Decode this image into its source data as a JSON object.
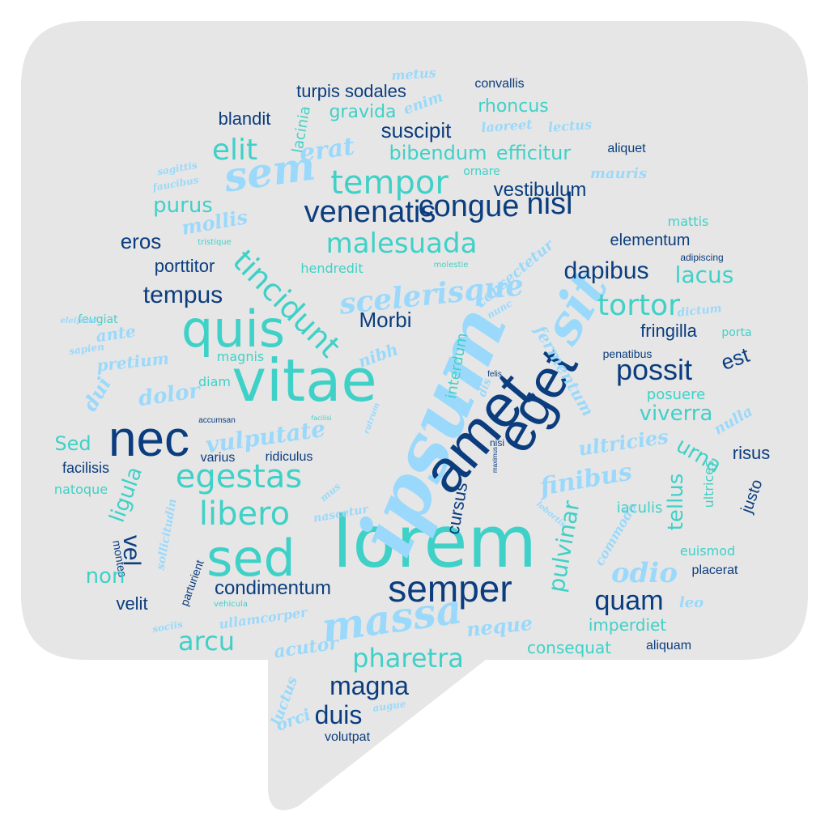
{
  "colors": {
    "bubble": "#e6e6e6",
    "navy": "#0b3d7e",
    "teal": "#3fd1c7",
    "sky": "#9ad9fb"
  },
  "words": [
    {
      "text": "lorem",
      "color": "teal",
      "font": "thin"
    },
    {
      "text": "ipsum",
      "color": "sky",
      "font": "script"
    },
    {
      "text": "amet",
      "color": "navy",
      "font": "sans"
    },
    {
      "text": "eget",
      "color": "navy",
      "font": "sans"
    },
    {
      "text": "vitae",
      "color": "teal",
      "font": "thin"
    },
    {
      "text": "quis",
      "color": "teal",
      "font": "thin"
    },
    {
      "text": "nec",
      "color": "navy",
      "font": "sans"
    },
    {
      "text": "sed",
      "color": "teal",
      "font": "thin"
    },
    {
      "text": "semper",
      "color": "navy",
      "font": "sans"
    },
    {
      "text": "massa",
      "color": "sky",
      "font": "script"
    },
    {
      "text": "sit",
      "color": "sky",
      "font": "script"
    },
    {
      "text": "sem",
      "color": "sky",
      "font": "script"
    },
    {
      "text": "tempor",
      "color": "teal",
      "font": "thin"
    },
    {
      "text": "venenatis",
      "color": "navy",
      "font": "sans"
    },
    {
      "text": "congue",
      "color": "navy",
      "font": "sans"
    },
    {
      "text": "nisl",
      "color": "navy",
      "font": "sans"
    },
    {
      "text": "malesuada",
      "color": "teal",
      "font": "thin"
    },
    {
      "text": "tincidunt",
      "color": "teal",
      "font": "thin"
    },
    {
      "text": "scelerisque",
      "color": "sky",
      "font": "script"
    },
    {
      "text": "egestas",
      "color": "teal",
      "font": "thin"
    },
    {
      "text": "libero",
      "color": "teal",
      "font": "thin"
    },
    {
      "text": "vulputate",
      "color": "sky",
      "font": "script"
    },
    {
      "text": "elit",
      "color": "teal",
      "font": "thin"
    },
    {
      "text": "erat",
      "color": "sky",
      "font": "script"
    },
    {
      "text": "possit",
      "color": "navy",
      "font": "sans"
    },
    {
      "text": "tortor",
      "color": "teal",
      "font": "thin"
    },
    {
      "text": "dapibus",
      "color": "navy",
      "font": "sans"
    },
    {
      "text": "quam",
      "color": "navy",
      "font": "sans"
    },
    {
      "text": "magna",
      "color": "navy",
      "font": "sans"
    },
    {
      "text": "duis",
      "color": "navy",
      "font": "sans"
    },
    {
      "text": "pharetra",
      "color": "teal",
      "font": "thin"
    },
    {
      "text": "arcu",
      "color": "teal",
      "font": "thin"
    },
    {
      "text": "condimentum",
      "color": "navy",
      "font": "sans"
    },
    {
      "text": "tempus",
      "color": "navy",
      "font": "sans"
    },
    {
      "text": "eros",
      "color": "navy",
      "font": "sans"
    },
    {
      "text": "porttitor",
      "color": "navy",
      "font": "sans"
    },
    {
      "text": "Morbi",
      "color": "navy",
      "font": "sans"
    },
    {
      "text": "est",
      "color": "navy",
      "font": "sans"
    },
    {
      "text": "fringilla",
      "color": "navy",
      "font": "sans"
    },
    {
      "text": "viverra",
      "color": "teal",
      "font": "thin"
    },
    {
      "text": "urna",
      "color": "teal",
      "font": "thin"
    },
    {
      "text": "tellus",
      "color": "teal",
      "font": "thin"
    },
    {
      "text": "pulvinar",
      "color": "teal",
      "font": "thin"
    },
    {
      "text": "odio",
      "color": "sky",
      "font": "script"
    },
    {
      "text": "finibus",
      "color": "sky",
      "font": "script"
    },
    {
      "text": "ultricies",
      "color": "sky",
      "font": "script"
    },
    {
      "text": "neque",
      "color": "sky",
      "font": "script"
    },
    {
      "text": "acutor",
      "color": "sky",
      "font": "script"
    },
    {
      "text": "vel",
      "color": "navy",
      "font": "sans"
    },
    {
      "text": "ligula",
      "color": "teal",
      "font": "thin"
    },
    {
      "text": "Sed",
      "color": "teal",
      "font": "thin"
    },
    {
      "text": "dolor",
      "color": "sky",
      "font": "script"
    },
    {
      "text": "dui",
      "color": "sky",
      "font": "script"
    },
    {
      "text": "ante",
      "color": "sky",
      "font": "script"
    },
    {
      "text": "pretium",
      "color": "sky",
      "font": "script"
    },
    {
      "text": "mollis",
      "color": "sky",
      "font": "script"
    },
    {
      "text": "purus",
      "color": "teal",
      "font": "thin"
    },
    {
      "text": "suscipit",
      "color": "navy",
      "font": "sans"
    },
    {
      "text": "bibendum",
      "color": "teal",
      "font": "thin"
    },
    {
      "text": "efficitur",
      "color": "teal",
      "font": "thin"
    },
    {
      "text": "vestibulum",
      "color": "navy",
      "font": "sans"
    },
    {
      "text": "turpis sodales",
      "color": "navy",
      "font": "sans"
    },
    {
      "text": "blandit",
      "color": "navy",
      "font": "sans"
    },
    {
      "text": "gravida",
      "color": "teal",
      "font": "thin"
    },
    {
      "text": "rhoncus",
      "color": "teal",
      "font": "thin"
    },
    {
      "text": "convallis",
      "color": "navy",
      "font": "sans"
    },
    {
      "text": "lacinia",
      "color": "teal",
      "font": "thin"
    },
    {
      "text": "enim",
      "color": "sky",
      "font": "script"
    },
    {
      "text": "metus",
      "color": "sky",
      "font": "script"
    },
    {
      "text": "laoreet",
      "color": "sky",
      "font": "script"
    },
    {
      "text": "lectus",
      "color": "sky",
      "font": "script"
    },
    {
      "text": "aliquet",
      "color": "navy",
      "font": "sans"
    },
    {
      "text": "ornare",
      "color": "teal",
      "font": "thin"
    },
    {
      "text": "mauris",
      "color": "sky",
      "font": "script"
    },
    {
      "text": "sagittis",
      "color": "sky",
      "font": "script"
    },
    {
      "text": "faucibus",
      "color": "sky",
      "font": "script"
    },
    {
      "text": "tristique",
      "color": "teal",
      "font": "thin"
    },
    {
      "text": "hendredit",
      "color": "teal",
      "font": "thin"
    },
    {
      "text": "molestie",
      "color": "teal",
      "font": "thin"
    },
    {
      "text": "consectetur",
      "color": "sky",
      "font": "script"
    },
    {
      "text": "adipiscing",
      "color": "navy",
      "font": "sans"
    },
    {
      "text": "elementum",
      "color": "navy",
      "font": "sans"
    },
    {
      "text": "mattis",
      "color": "teal",
      "font": "thin"
    },
    {
      "text": "lacus",
      "color": "teal",
      "font": "thin"
    },
    {
      "text": "feugiat",
      "color": "teal",
      "font": "thin"
    },
    {
      "text": "eleifend",
      "color": "sky",
      "font": "script"
    },
    {
      "text": "sapien",
      "color": "sky",
      "font": "script"
    },
    {
      "text": "magnis",
      "color": "teal",
      "font": "thin"
    },
    {
      "text": "nibh",
      "color": "sky",
      "font": "script"
    },
    {
      "text": "nunc",
      "color": "sky",
      "font": "script"
    },
    {
      "text": "dictum",
      "color": "sky",
      "font": "script"
    },
    {
      "text": "porta",
      "color": "teal",
      "font": "thin"
    },
    {
      "text": "penatibus",
      "color": "navy",
      "font": "sans"
    },
    {
      "text": "fermentum",
      "color": "sky",
      "font": "script"
    },
    {
      "text": "interdum",
      "color": "teal",
      "font": "thin"
    },
    {
      "text": "dis",
      "color": "sky",
      "font": "script"
    },
    {
      "text": "felis",
      "color": "navy",
      "font": "sans"
    },
    {
      "text": "diam",
      "color": "teal",
      "font": "thin"
    },
    {
      "text": "posuere",
      "color": "teal",
      "font": "thin"
    },
    {
      "text": "nulla",
      "color": "sky",
      "font": "script"
    },
    {
      "text": "risus",
      "color": "navy",
      "font": "sans"
    },
    {
      "text": "accumsan",
      "color": "navy",
      "font": "sans"
    },
    {
      "text": "facilisi",
      "color": "teal",
      "font": "thin"
    },
    {
      "text": "rutrum",
      "color": "sky",
      "font": "script"
    },
    {
      "text": "purus",
      "color": "sky",
      "font": "script"
    },
    {
      "text": "nisi",
      "color": "navy",
      "font": "sans"
    },
    {
      "text": "maximus",
      "color": "navy",
      "font": "sans"
    },
    {
      "text": "varius",
      "color": "navy",
      "font": "sans"
    },
    {
      "text": "ridiculus",
      "color": "navy",
      "font": "sans"
    },
    {
      "text": "facilisis",
      "color": "navy",
      "font": "sans"
    },
    {
      "text": "natoque",
      "color": "teal",
      "font": "thin"
    },
    {
      "text": "cursus",
      "color": "navy",
      "font": "sans"
    },
    {
      "text": "mus",
      "color": "sky",
      "font": "script"
    },
    {
      "text": "nascetur",
      "color": "sky",
      "font": "script"
    },
    {
      "text": "sollicitudin",
      "color": "sky",
      "font": "script"
    },
    {
      "text": "lobortis",
      "color": "sky",
      "font": "script"
    },
    {
      "text": "commodo",
      "color": "sky",
      "font": "script"
    },
    {
      "text": "ultrices",
      "color": "teal",
      "font": "thin"
    },
    {
      "text": "iaculis",
      "color": "teal",
      "font": "thin"
    },
    {
      "text": "justo",
      "color": "navy",
      "font": "sans"
    },
    {
      "text": "montes",
      "color": "navy",
      "font": "sans"
    },
    {
      "text": "parturient",
      "color": "navy",
      "font": "sans"
    },
    {
      "text": "non",
      "color": "teal",
      "font": "thin"
    },
    {
      "text": "velit",
      "color": "navy",
      "font": "sans"
    },
    {
      "text": "euismod",
      "color": "teal",
      "font": "thin"
    },
    {
      "text": "placerat",
      "color": "navy",
      "font": "sans"
    },
    {
      "text": "leo",
      "color": "sky",
      "font": "script"
    },
    {
      "text": "imperdiet",
      "color": "teal",
      "font": "thin"
    },
    {
      "text": "consequat",
      "color": "teal",
      "font": "thin"
    },
    {
      "text": "aliquam",
      "color": "navy",
      "font": "sans"
    },
    {
      "text": "ullamcorper",
      "color": "sky",
      "font": "script"
    },
    {
      "text": "vehicula",
      "color": "teal",
      "font": "thin"
    },
    {
      "text": "sociis",
      "color": "sky",
      "font": "script"
    },
    {
      "text": "luctus",
      "color": "sky",
      "font": "script"
    },
    {
      "text": "orci",
      "color": "sky",
      "font": "script"
    },
    {
      "text": "augue",
      "color": "sky",
      "font": "script"
    },
    {
      "text": "volutpat",
      "color": "navy",
      "font": "sans"
    }
  ]
}
